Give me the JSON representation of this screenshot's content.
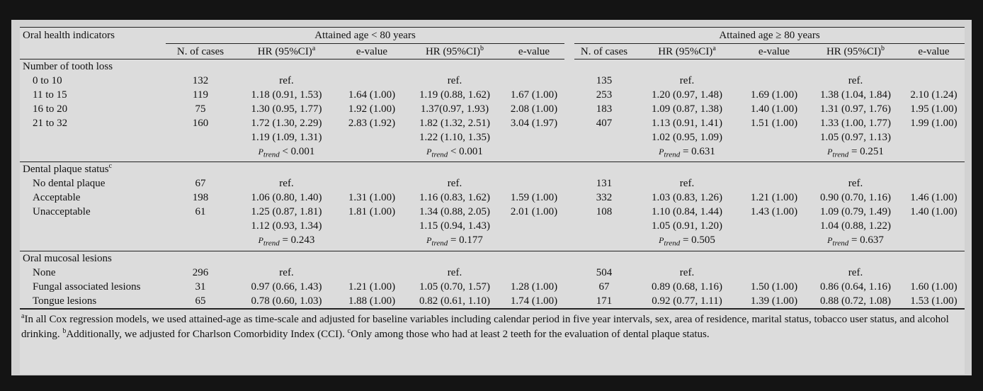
{
  "header": {
    "first_col": "Oral health indicators",
    "group_lt80": "Attained age < 80 years",
    "group_ge80": "Attained age ≥ 80 years",
    "cols": {
      "n_cases": "N. of cases",
      "hr_a": "HR (95%CI)",
      "hr_b": "HR (95%CI)",
      "evalue": "e-value",
      "sup_a": "a",
      "sup_b": "b"
    }
  },
  "sections": [
    {
      "title": "Number of tooth loss",
      "title_sup": "",
      "rows": [
        {
          "label": "0 to 10",
          "n1": "132",
          "hr1a": "ref.",
          "e1a": "",
          "hr1b": "ref.",
          "e1b": "",
          "n2": "135",
          "hr2a": "ref.",
          "e2a": "",
          "hr2b": "ref.",
          "e2b": ""
        },
        {
          "label": "11 to 15",
          "n1": "119",
          "hr1a": "1.18 (0.91, 1.53)",
          "e1a": "1.64 (1.00)",
          "hr1b": "1.19 (0.88, 1.62)",
          "e1b": "1.67 (1.00)",
          "n2": "253",
          "hr2a": "1.20 (0.97, 1.48)",
          "e2a": "1.69 (1.00)",
          "hr2b": "1.38 (1.04, 1.84)",
          "e2b": "2.10 (1.24)"
        },
        {
          "label": "16 to 20",
          "n1": "75",
          "hr1a": "1.30 (0.95, 1.77)",
          "e1a": "1.92 (1.00)",
          "hr1b": "1.37(0.97, 1.93)",
          "e1b": "2.08 (1.00)",
          "n2": "183",
          "hr2a": "1.09 (0.87, 1.38)",
          "e2a": "1.40 (1.00)",
          "hr2b": "1.31 (0.97, 1.76)",
          "e2b": "1.95 (1.00)"
        },
        {
          "label": "21 to 32",
          "n1": "160",
          "hr1a": "1.72 (1.30, 2.29)",
          "e1a": "2.83 (1.92)",
          "hr1b": "1.82 (1.32, 2.51)",
          "e1b": "3.04 (1.97)",
          "n2": "407",
          "hr2a": "1.13 (0.91, 1.41)",
          "e2a": "1.51 (1.00)",
          "hr2b": "1.33 (1.00, 1.77)",
          "e2b": "1.99 (1.00)"
        }
      ],
      "trend_hr": {
        "hr1a": "1.19 (1.09, 1.31)",
        "hr1b": "1.22 (1.10, 1.35)",
        "hr2a": "1.02 (0.95, 1.09)",
        "hr2b": "1.05 (0.97, 1.13)"
      },
      "ptrend": {
        "p1a": "< 0.001",
        "p1b": "< 0.001",
        "p2a": "= 0.631",
        "p2b": "= 0.251"
      }
    },
    {
      "title": "Dental plaque status",
      "title_sup": "c",
      "rows": [
        {
          "label": "No dental plaque",
          "n1": "67",
          "hr1a": "ref.",
          "e1a": "",
          "hr1b": "ref.",
          "e1b": "",
          "n2": "131",
          "hr2a": "ref.",
          "e2a": "",
          "hr2b": "ref.",
          "e2b": ""
        },
        {
          "label": "Acceptable",
          "n1": "198",
          "hr1a": "1.06 (0.80, 1.40)",
          "e1a": "1.31 (1.00)",
          "hr1b": "1.16 (0.83, 1.62)",
          "e1b": "1.59 (1.00)",
          "n2": "332",
          "hr2a": "1.03 (0.83, 1.26)",
          "e2a": "1.21 (1.00)",
          "hr2b": "0.90 (0.70, 1.16)",
          "e2b": "1.46 (1.00)"
        },
        {
          "label": "Unacceptable",
          "n1": "61",
          "hr1a": "1.25 (0.87, 1.81)",
          "e1a": "1.81 (1.00)",
          "hr1b": "1.34 (0.88, 2.05)",
          "e1b": "2.01 (1.00)",
          "n2": "108",
          "hr2a": "1.10 (0.84, 1.44)",
          "e2a": "1.43 (1.00)",
          "hr2b": "1.09 (0.79, 1.49)",
          "e2b": "1.40 (1.00)"
        }
      ],
      "trend_hr": {
        "hr1a": "1.12 (0.93, 1.34)",
        "hr1b": "1.15 (0.94, 1.43)",
        "hr2a": "1.05 (0.91, 1.20)",
        "hr2b": "1.04 (0.88, 1.22)"
      },
      "ptrend": {
        "p1a": "= 0.243",
        "p1b": "= 0.177",
        "p2a": "= 0.505",
        "p2b": "= 0.637"
      }
    },
    {
      "title": "Oral mucosal lesions",
      "title_sup": "",
      "rows": [
        {
          "label": "None",
          "n1": "296",
          "hr1a": "ref.",
          "e1a": "",
          "hr1b": "ref.",
          "e1b": "",
          "n2": "504",
          "hr2a": "ref.",
          "e2a": "",
          "hr2b": "ref.",
          "e2b": ""
        },
        {
          "label": "Fungal associated lesions",
          "n1": "31",
          "hr1a": "0.97 (0.66, 1.43)",
          "e1a": "1.21 (1.00)",
          "hr1b": "1.05 (0.70, 1.57)",
          "e1b": "1.28 (1.00)",
          "n2": "67",
          "hr2a": "0.89 (0.68, 1.16)",
          "e2a": "1.50 (1.00)",
          "hr2b": "0.86 (0.64, 1.16)",
          "e2b": "1.60 (1.00)"
        },
        {
          "label": "Tongue lesions",
          "n1": "65",
          "hr1a": "0.78 (0.60, 1.03)",
          "e1a": "1.88 (1.00)",
          "hr1b": "0.82 (0.61, 1.10)",
          "e1b": "1.74 (1.00)",
          "n2": "171",
          "hr2a": "0.92 (0.77, 1.11)",
          "e2a": "1.39 (1.00)",
          "hr2b": "0.88 (0.72, 1.08)",
          "e2b": "1.53 (1.00)"
        }
      ]
    }
  ],
  "ptrend_label": "P",
  "ptrend_sub": "trend",
  "footnotes": {
    "a_mark": "a",
    "a": "In all Cox regression models, we used attained-age as time-scale and adjusted for baseline variables including calendar period in five year intervals, sex, area of residence, marital status, tobacco user status, and alcohol drinking. ",
    "b_mark": "b",
    "b": "Additionally, we adjusted for Charlson Comorbidity Index (CCI). ",
    "c_mark": "c",
    "c": "Only among those who had at least 2 teeth for the evaluation of dental plaque status."
  },
  "bold_cells": [
    "1.38 (1.04, 1.84)",
    "1.72 (1.30, 2.29)",
    "1.82 (1.32, 2.51)",
    "1.33 (1.00, 1.77)"
  ]
}
